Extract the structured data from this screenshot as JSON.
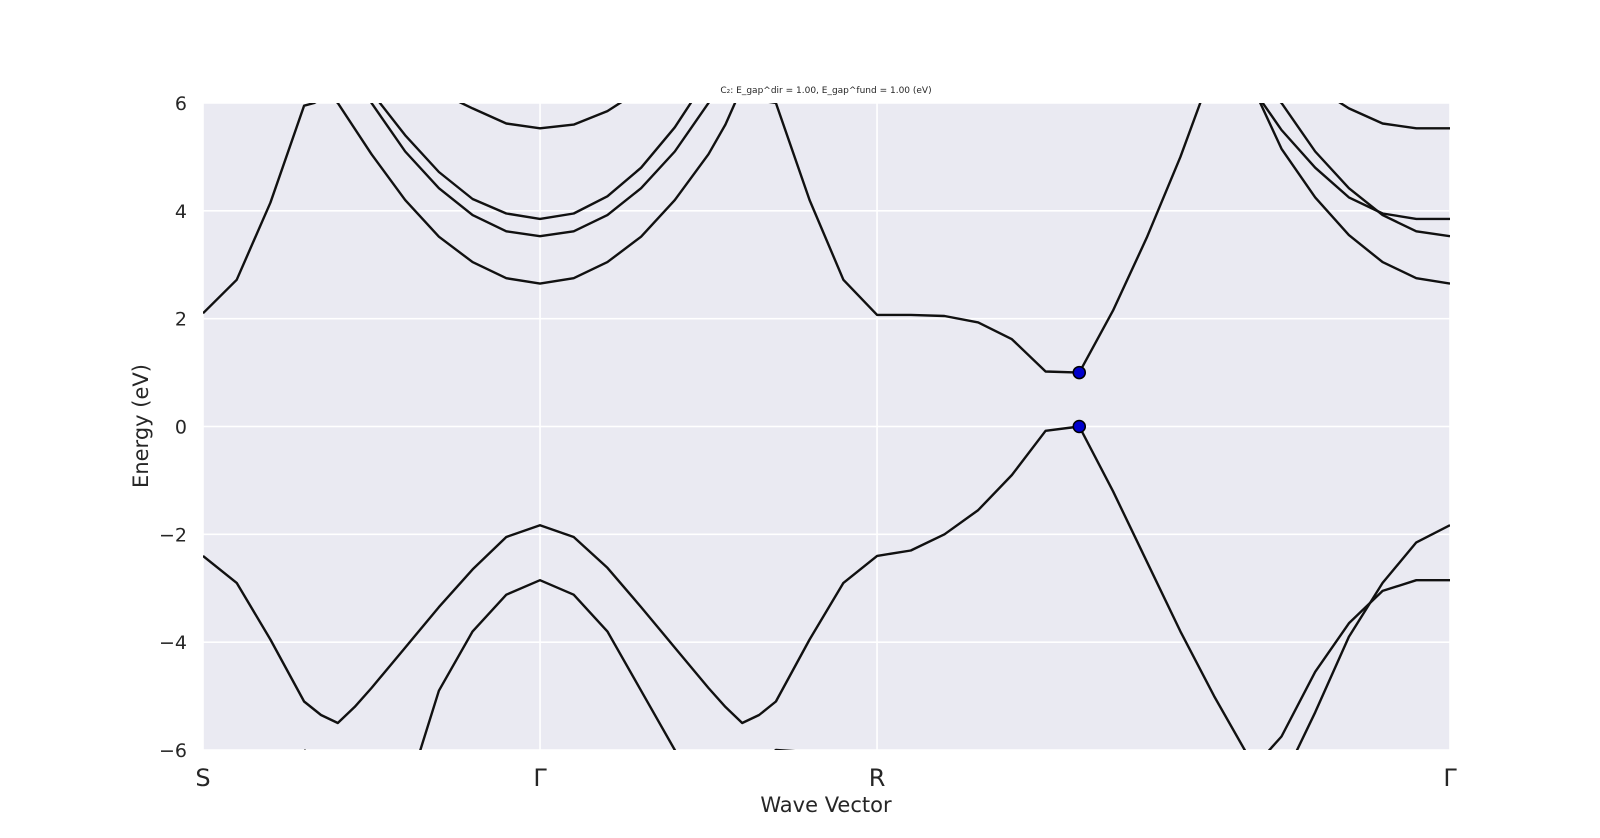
{
  "chart_data": {
    "type": "line",
    "title": "C₂: E_gap^dir = 1.00, E_gap^fund = 1.00 (eV)",
    "xlabel": "Wave Vector",
    "ylabel": "Energy (eV)",
    "ylim": [
      -6,
      6
    ],
    "xlim": [
      0,
      37
    ],
    "yticks": [
      {
        "value": -6,
        "label": "−6"
      },
      {
        "value": -4,
        "label": "−4"
      },
      {
        "value": -2,
        "label": "−2"
      },
      {
        "value": 0,
        "label": "0"
      },
      {
        "value": 2,
        "label": "2"
      },
      {
        "value": 4,
        "label": "4"
      },
      {
        "value": 6,
        "label": "6"
      }
    ],
    "kpoints": [
      {
        "x": 0,
        "label": "S"
      },
      {
        "x": 10,
        "label": "Γ"
      },
      {
        "x": 20,
        "label": "R"
      },
      {
        "x": 37,
        "label": "Γ"
      }
    ],
    "grid": true,
    "background": "#eaeaf2",
    "band_color": "#111111",
    "marker_color": "#0000cc",
    "bands": [
      {
        "x": [
          0,
          1,
          2,
          3,
          3.5,
          4,
          4.5,
          5,
          6,
          7,
          8,
          9,
          10,
          11,
          12,
          13,
          14,
          15,
          15.5,
          16,
          16.5,
          17,
          18,
          19,
          20,
          21,
          22,
          23,
          24,
          25,
          26,
          27,
          28,
          29,
          30,
          31,
          32,
          33,
          34,
          35,
          36,
          37
        ],
        "y": [
          -2.4,
          -2.9,
          -3.95,
          -5.1,
          -5.35,
          -5.5,
          -5.2,
          -4.85,
          -4.1,
          -3.35,
          -2.65,
          -2.05,
          -1.83,
          -2.05,
          -2.62,
          -3.35,
          -4.1,
          -4.85,
          -5.2,
          -5.5,
          -5.35,
          -5.1,
          -3.95,
          -2.9,
          -2.4,
          -2.3,
          -2.0,
          -1.55,
          -0.9,
          -0.08,
          0.0,
          -1.2,
          -2.5,
          -3.8,
          -5.0,
          -6.1,
          -6.6,
          -5.3,
          -3.9,
          -2.9,
          -2.15,
          -1.83
        ]
      },
      {
        "x": [
          3,
          4,
          5,
          6,
          7,
          8,
          9,
          10,
          11,
          12,
          13,
          14,
          15,
          16,
          17,
          30,
          31,
          31.5,
          32,
          33,
          34,
          35,
          36,
          37
        ],
        "y": [
          -6.0,
          -6.5,
          -6.9,
          -6.9,
          -4.9,
          -3.8,
          -3.12,
          -2.85,
          -3.12,
          -3.8,
          -4.9,
          -6.0,
          -6.9,
          -6.5,
          -6.0,
          -6.5,
          -6.4,
          -6.1,
          -5.75,
          -4.55,
          -3.65,
          -3.05,
          -2.85,
          -2.85
        ]
      },
      {
        "x": [
          0,
          1,
          2,
          3,
          3.3,
          3.7,
          4,
          5,
          6,
          7,
          8,
          9,
          10,
          11,
          12,
          13,
          14,
          15,
          15.5,
          16,
          16.5,
          17,
          18,
          19,
          20,
          21,
          22,
          23,
          24,
          25,
          26,
          27,
          28,
          29,
          30,
          30.5,
          31,
          32,
          33,
          34,
          35,
          36,
          37
        ],
        "y": [
          2.1,
          2.72,
          4.15,
          5.95,
          6.0,
          6.15,
          6.0,
          5.05,
          4.2,
          3.52,
          3.05,
          2.75,
          2.65,
          2.75,
          3.05,
          3.52,
          4.2,
          5.05,
          5.6,
          6.3,
          6.05,
          6.0,
          4.2,
          2.72,
          2.07,
          2.07,
          2.05,
          1.93,
          1.62,
          1.02,
          1.0,
          2.15,
          3.5,
          5.0,
          6.7,
          6.3,
          6.5,
          5.15,
          4.25,
          3.55,
          3.05,
          2.75,
          2.65
        ]
      },
      {
        "x": [
          4,
          5,
          6,
          7,
          8,
          9,
          10,
          11,
          12,
          13,
          14,
          15,
          16,
          30,
          31,
          32,
          33,
          34,
          35,
          36,
          37
        ],
        "y": [
          7.0,
          6.0,
          5.1,
          4.42,
          3.92,
          3.62,
          3.53,
          3.62,
          3.92,
          4.42,
          5.1,
          6.0,
          7.0,
          6.8,
          6.5,
          6.0,
          5.1,
          4.42,
          3.92,
          3.62,
          3.53
        ]
      },
      {
        "x": [
          5,
          6,
          7,
          8,
          9,
          10,
          11,
          12,
          13,
          14,
          15,
          31,
          32,
          33,
          34,
          35,
          36,
          37
        ],
        "y": [
          6.2,
          5.4,
          4.72,
          4.22,
          3.95,
          3.85,
          3.95,
          4.27,
          4.8,
          5.55,
          6.5,
          6.4,
          5.5,
          4.8,
          4.25,
          3.95,
          3.85,
          3.85
        ]
      },
      {
        "x": [
          7,
          8,
          9,
          10,
          11,
          12,
          13,
          33,
          34,
          35,
          36,
          37
        ],
        "y": [
          6.2,
          5.9,
          5.62,
          5.53,
          5.6,
          5.85,
          6.25,
          6.3,
          5.9,
          5.62,
          5.53,
          5.53
        ]
      }
    ],
    "markers": [
      {
        "x": 26,
        "y": 1.0
      },
      {
        "x": 26,
        "y": 0.0
      }
    ]
  }
}
